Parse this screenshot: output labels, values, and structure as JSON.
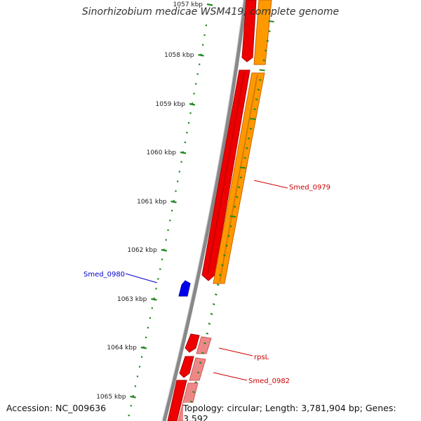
{
  "title": "Sinorhizobium medicae WSM419, complete genome",
  "footer": {
    "accession": "Accession: NC_009636",
    "topology": "Topology: circular; Length: 3,781,904 bp; Genes: 3,592"
  },
  "ruler": {
    "labels": [
      "1057 kbp",
      "1058 kbp",
      "1059 kbp",
      "1060 kbp",
      "1061 kbp",
      "1062 kbp",
      "1063 kbp",
      "1064 kbp",
      "1065 kbp"
    ]
  },
  "genes": [
    {
      "label": "Smed_0979",
      "strand": "forward",
      "color": "#cc0000"
    },
    {
      "label": "Smed_0980",
      "strand": "reverse",
      "color": "#0000cc"
    },
    {
      "label": "rpsL",
      "strand": "forward",
      "color": "#cc0000"
    },
    {
      "label": "Smed_0982",
      "strand": "forward",
      "color": "#cc0000"
    }
  ],
  "colors": {
    "backbone": "#888888",
    "cds": "#ee0000",
    "gene": "#ff9900",
    "rrna_like": "#ee8888",
    "forward_label": "#cc0000",
    "reverse_label": "#0000cc",
    "tick": "#228822"
  }
}
